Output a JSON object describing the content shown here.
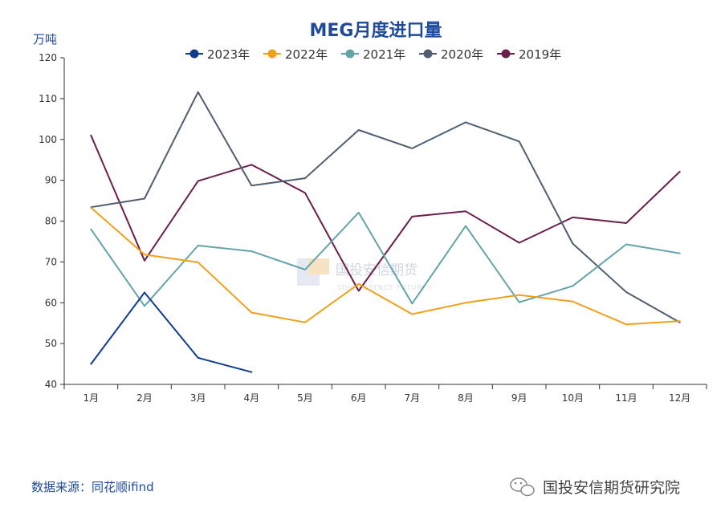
{
  "chart_data": {
    "type": "line",
    "title": "MEG月度进口量",
    "ylabel": "万吨",
    "xlabel": "",
    "ylim": [
      40,
      120
    ],
    "yticks": [
      40,
      50,
      60,
      70,
      80,
      90,
      100,
      110,
      120
    ],
    "categories": [
      "1月",
      "2月",
      "3月",
      "4月",
      "5月",
      "6月",
      "7月",
      "8月",
      "9月",
      "10月",
      "11月",
      "12月"
    ],
    "legend_position": "top-center",
    "grid": false,
    "series": [
      {
        "name": "2023年",
        "color": "#0f3d8c",
        "values": [
          45.0,
          62.5,
          46.5,
          43.0,
          null,
          null,
          null,
          null,
          null,
          null,
          null,
          null
        ]
      },
      {
        "name": "2022年",
        "color": "#f0a01a",
        "values": [
          83.3,
          71.8,
          69.9,
          57.6,
          55.2,
          64.6,
          57.2,
          60.0,
          61.9,
          60.3,
          54.7,
          55.5
        ]
      },
      {
        "name": "2021年",
        "color": "#64a4a9",
        "values": [
          78.0,
          59.2,
          74.0,
          72.6,
          68.1,
          82.1,
          59.8,
          78.8,
          60.1,
          64.1,
          74.3,
          72.1
        ]
      },
      {
        "name": "2020年",
        "color": "#4f5f6f",
        "values": [
          83.4,
          85.5,
          111.6,
          88.7,
          90.5,
          102.3,
          97.8,
          104.2,
          99.5,
          74.5,
          62.6,
          55.2
        ]
      },
      {
        "name": "2019年",
        "color": "#6b1f4b",
        "values": [
          101.0,
          70.3,
          89.8,
          93.8,
          86.9,
          62.9,
          81.1,
          82.4,
          74.7,
          80.9,
          79.5,
          92.1
        ]
      }
    ]
  },
  "source": "数据来源：同花顺ifind",
  "footer_brand": "国投安信期货研究院",
  "watermark": {
    "main": "国投安信期货",
    "sub": "SDIC ESSENCE FUTURES"
  }
}
